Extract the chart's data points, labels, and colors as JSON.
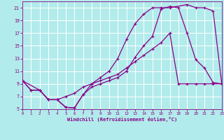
{
  "xlabel": "Windchill (Refroidissement éolien,°C)",
  "bg_color": "#b2ebeb",
  "grid_color": "#ffffff",
  "line_color": "#880088",
  "xlim": [
    0,
    23
  ],
  "ylim": [
    5,
    22
  ],
  "xticks": [
    0,
    1,
    2,
    3,
    4,
    5,
    6,
    7,
    8,
    9,
    10,
    11,
    12,
    13,
    14,
    15,
    16,
    17,
    18,
    19,
    20,
    21,
    22,
    23
  ],
  "yticks": [
    5,
    7,
    9,
    11,
    13,
    15,
    17,
    19,
    21
  ],
  "line1_x": [
    0,
    1,
    2,
    3,
    4,
    5,
    6,
    7,
    8,
    9,
    10,
    11,
    12,
    13,
    14,
    15,
    16,
    17,
    18,
    19,
    20,
    21,
    22,
    23
  ],
  "line1_y": [
    9.5,
    8.0,
    8.0,
    6.5,
    6.5,
    7.0,
    7.5,
    8.5,
    9.0,
    9.5,
    10.0,
    10.5,
    11.5,
    12.5,
    13.5,
    14.5,
    15.5,
    17.0,
    9.0,
    9.0,
    9.0,
    9.0,
    9.0,
    9.0
  ],
  "line2_x": [
    0,
    1,
    2,
    3,
    4,
    5,
    6,
    7,
    8,
    9,
    10,
    11,
    12,
    13,
    14,
    15,
    16,
    17,
    19,
    20,
    21,
    22,
    23
  ],
  "line2_y": [
    9.5,
    8.0,
    8.0,
    6.5,
    6.5,
    5.3,
    5.2,
    7.3,
    9.0,
    10.0,
    11.0,
    13.0,
    16.0,
    18.5,
    20.0,
    21.0,
    21.0,
    21.0,
    21.5,
    21.0,
    21.0,
    20.5,
    9.0
  ],
  "line3_x": [
    0,
    2,
    3,
    4,
    5,
    6,
    7,
    8,
    9,
    10,
    11,
    12,
    13,
    14,
    15,
    16,
    17,
    18,
    19,
    20,
    21,
    22,
    23
  ],
  "line3_y": [
    9.5,
    8.0,
    6.5,
    6.5,
    5.3,
    5.2,
    7.3,
    8.5,
    9.0,
    9.5,
    10.0,
    11.0,
    13.2,
    15.0,
    16.5,
    20.8,
    21.2,
    21.0,
    17.0,
    12.8,
    11.5,
    9.2,
    9.0
  ]
}
